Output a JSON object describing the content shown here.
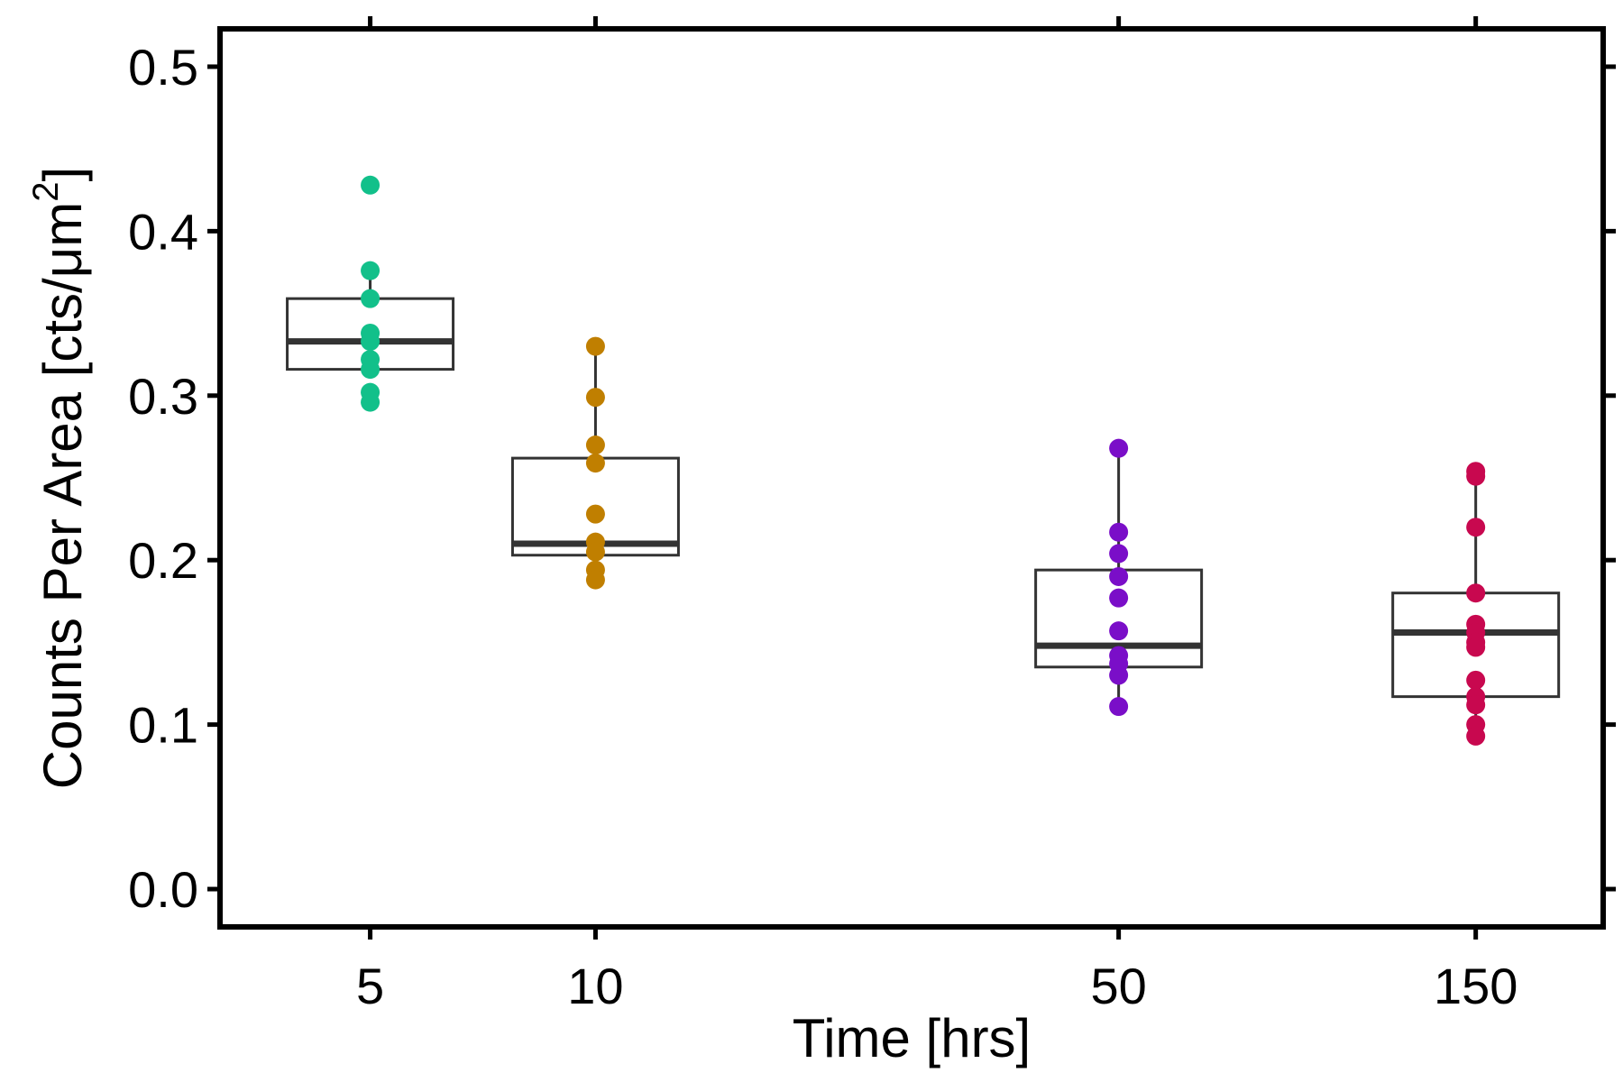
{
  "chart_data": {
    "type": "box",
    "xlabel": "Time [hrs]",
    "ylabel": "Counts Per Area [cts/μm²]",
    "ylabel_main": "Counts Per Area [cts/μm",
    "ylabel_sup": "2",
    "ylabel_close": "]",
    "ylim": [
      -0.023,
      0.523
    ],
    "y_ticks": [
      "0.0",
      "0.1",
      "0.2",
      "0.3",
      "0.4",
      "0.5"
    ],
    "x_scale": "log",
    "xlim": [
      3.15,
      222
    ],
    "x_ticks": [
      "5",
      "10",
      "50",
      "150"
    ],
    "grid": false,
    "legend": "none",
    "series": [
      {
        "time": 5,
        "color": "#12c08a",
        "box": {
          "q1": 0.316,
          "median": 0.333,
          "q3": 0.359,
          "whisker_low": 0.316,
          "whisker_high": 0.376
        },
        "points": [
          0.428,
          0.376,
          0.359,
          0.338,
          0.333,
          0.322,
          0.316,
          0.302,
          0.296
        ]
      },
      {
        "time": 10,
        "color": "#c07f00",
        "box": {
          "q1": 0.203,
          "median": 0.21,
          "q3": 0.262,
          "whisker_low": 0.187,
          "whisker_high": 0.33
        },
        "points": [
          0.33,
          0.299,
          0.27,
          0.259,
          0.228,
          0.211,
          0.205,
          0.194,
          0.188
        ]
      },
      {
        "time": 50,
        "color": "#7a0ec8",
        "box": {
          "q1": 0.135,
          "median": 0.148,
          "q3": 0.194,
          "whisker_low": 0.111,
          "whisker_high": 0.268
        },
        "points": [
          0.268,
          0.217,
          0.204,
          0.19,
          0.177,
          0.157,
          0.142,
          0.137,
          0.13,
          0.111
        ]
      },
      {
        "time": 150,
        "color": "#c8084f",
        "box": {
          "q1": 0.117,
          "median": 0.156,
          "q3": 0.18,
          "whisker_low": 0.093,
          "whisker_high": 0.254
        },
        "points": [
          0.254,
          0.251,
          0.22,
          0.18,
          0.161,
          0.156,
          0.15,
          0.147,
          0.127,
          0.117,
          0.112,
          0.1,
          0.093
        ]
      }
    ]
  }
}
